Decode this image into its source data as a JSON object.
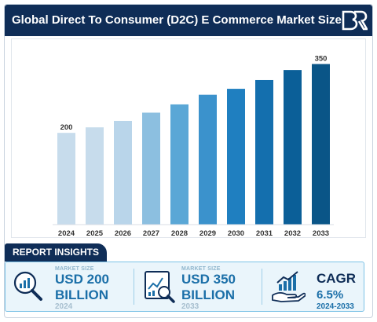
{
  "header": {
    "title": "Global Direct To Consumer (D2C) E Commerce Market Size"
  },
  "chart_data": {
    "type": "bar",
    "categories": [
      "2024",
      "2025",
      "2026",
      "2027",
      "2028",
      "2029",
      "2030",
      "2031",
      "2032",
      "2033"
    ],
    "values": [
      200,
      212,
      226,
      244,
      262,
      283,
      296,
      315,
      337,
      350
    ],
    "data_labels": {
      "first": "200",
      "last": "350"
    },
    "bar_colors": [
      "#c7dcec",
      "#c7dcec",
      "#b9d5ea",
      "#8cbfe0",
      "#5aa7d6",
      "#3b92cc",
      "#1f7fc0",
      "#146fae",
      "#0b5f98",
      "#0a5587"
    ],
    "ylim": [
      0,
      380
    ],
    "grid": false,
    "legend": "none"
  },
  "insights": {
    "tab_label": "REPORT INSIGHTS",
    "cards": [
      {
        "caption": "MARKET SIZE",
        "line1": "USD 200",
        "line2": "BILLION",
        "year": "2024",
        "icon": "magnifier-chart-icon"
      },
      {
        "caption": "MARKET SIZE",
        "line1": "USD 350",
        "line2": "BILLION",
        "year": "2033",
        "icon": "document-chart-icon"
      }
    ],
    "cagr": {
      "label": "CAGR",
      "value": "6.5%",
      "period": "2024-2033",
      "icon": "hand-growth-icon"
    }
  },
  "colors": {
    "header_bg": "#0f2d57",
    "accent": "#1b6fa8",
    "panel_bg": "#eaf5fb",
    "panel_border": "#7cc2e6"
  }
}
